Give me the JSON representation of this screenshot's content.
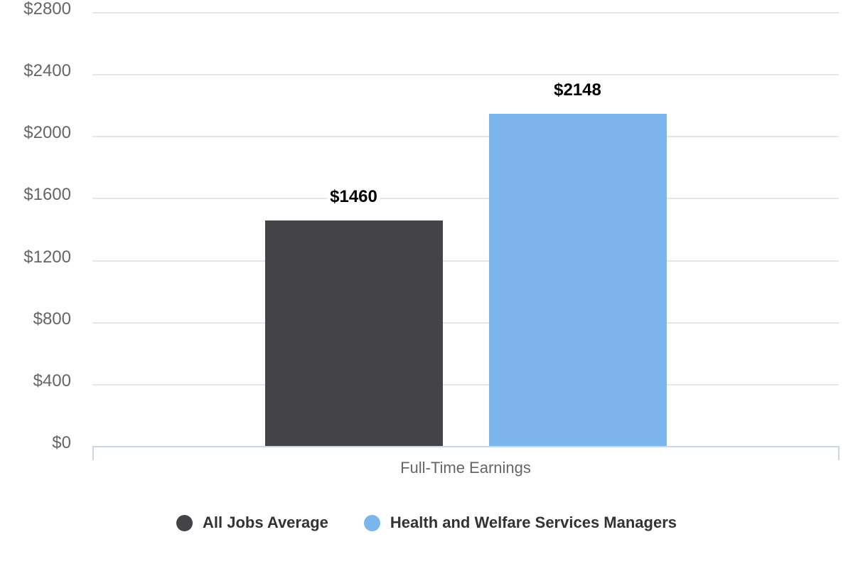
{
  "chart_data": {
    "type": "bar",
    "title": "",
    "categories": [
      "Full-Time Earnings"
    ],
    "series": [
      {
        "name": "All Jobs Average",
        "value": 1460,
        "label": "$1460",
        "color": "#434348"
      },
      {
        "name": "Health and Welfare Services Managers",
        "value": 2148,
        "label": "$2148",
        "color": "#7cb5ec"
      }
    ],
    "xlabel": "Full-Time Earnings",
    "ylabel": "",
    "ylim": [
      0,
      2800
    ],
    "yticks": [
      {
        "value": 0,
        "label": "$0"
      },
      {
        "value": 400,
        "label": "$400"
      },
      {
        "value": 800,
        "label": "$800"
      },
      {
        "value": 1200,
        "label": "$1200"
      },
      {
        "value": 1600,
        "label": "$1600"
      },
      {
        "value": 2000,
        "label": "$2000"
      },
      {
        "value": 2400,
        "label": "$2400"
      },
      {
        "value": 2800,
        "label": "$2800"
      }
    ],
    "grid": true,
    "legend_position": "bottom"
  },
  "colors": {
    "background": "#ffffff",
    "grid": "#e6e6e6",
    "axis_line": "#ccd6eb",
    "tick_label": "#666666",
    "axis_title": "#666666",
    "data_label": "#000000",
    "legend_text": "#333333"
  }
}
